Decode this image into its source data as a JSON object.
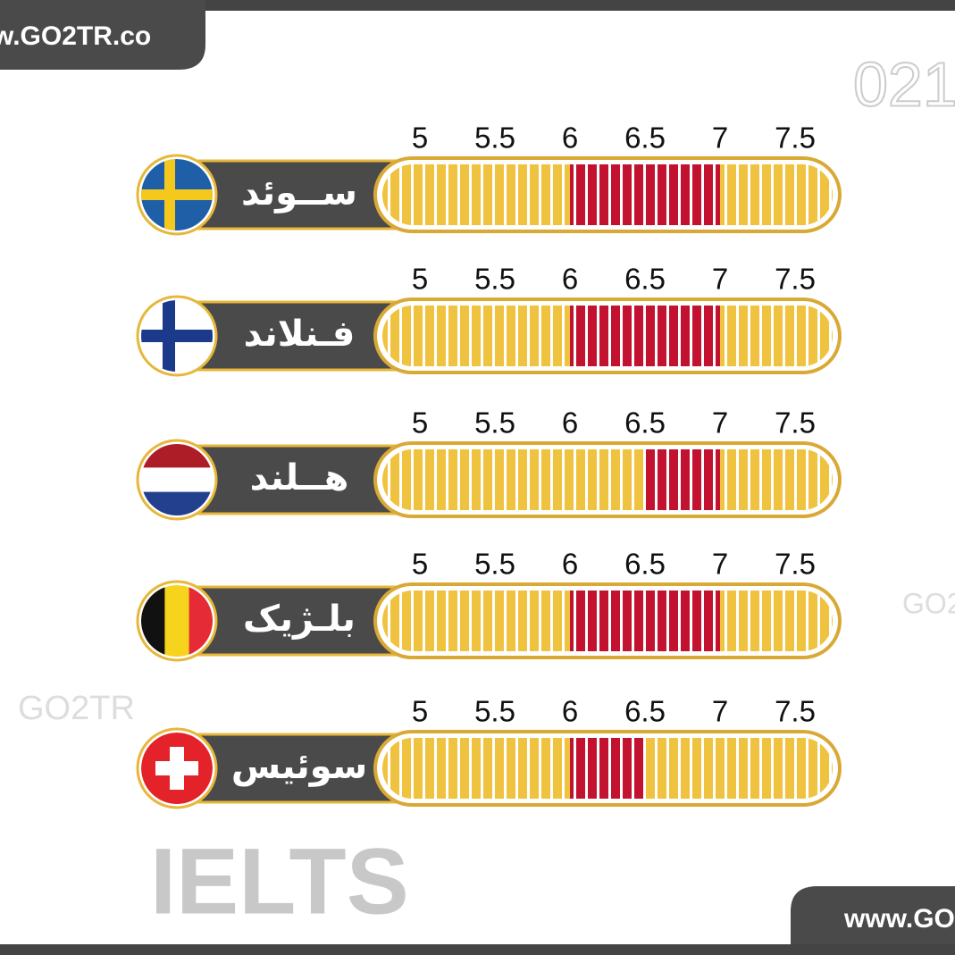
{
  "header": {
    "url": "w.GO2TR.co",
    "phone": "021"
  },
  "footer": {
    "title": "IELTS",
    "url": "www.GO"
  },
  "watermarks": [
    "GO2TR",
    "GO2"
  ],
  "chart_data": {
    "type": "range",
    "categories": [
      "ســوئد",
      "فـنلاند",
      "هــلند",
      "بلـژیک",
      "سوئیس"
    ],
    "values": [
      [
        6,
        7
      ],
      [
        6,
        7
      ],
      [
        6.5,
        7
      ],
      [
        6,
        7
      ],
      [
        6,
        6.5
      ]
    ],
    "color": "#efc23f",
    "range_color": "#c21230",
    "xlim": [
      4.75,
      7.75
    ],
    "xticks": [
      5,
      5.5,
      6,
      6.5,
      7,
      7.5
    ]
  }
}
